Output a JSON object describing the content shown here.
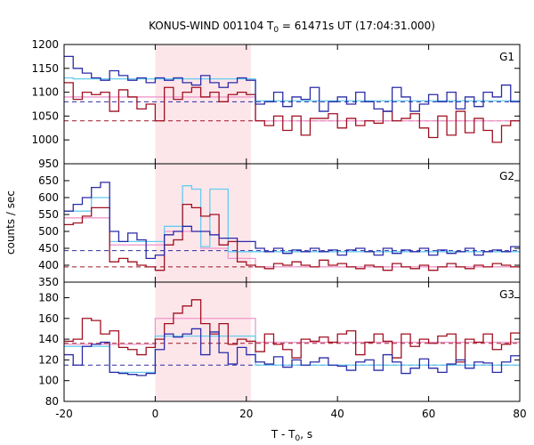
{
  "chart_data": {
    "type": "line",
    "title_main": "KONUS-WIND 001104 T",
    "title_sub": "0",
    "title_rest": " = 61471s UT (17:04:31.000)",
    "xlabel_main": "T - T",
    "xlabel_sub": "0",
    "xlabel_rest": ", s",
    "ylabel": "counts / sec",
    "xlim": [
      -20,
      80
    ],
    "x_ticks": [
      "-20",
      "0",
      "20",
      "40",
      "60",
      "80"
    ],
    "x_tick_values": [
      -20,
      0,
      20,
      40,
      60,
      80
    ],
    "highlight_interval": [
      0,
      21
    ],
    "colors": {
      "dark_blue": "#2b2ba8",
      "dark_red": "#a01020",
      "light_blue": "#66ccee",
      "pink": "#ee99cc",
      "highlight": "#fde6ea"
    },
    "bin_edges": [
      -20,
      -18,
      -16,
      -14,
      -12,
      -10,
      -8,
      -6,
      -4,
      -2,
      0,
      2,
      4,
      6,
      8,
      10,
      12,
      14,
      16,
      18,
      20,
      22,
      24,
      26,
      28,
      30,
      32,
      34,
      36,
      38,
      40,
      42,
      44,
      46,
      48,
      50,
      52,
      54,
      56,
      58,
      60,
      62,
      64,
      66,
      68,
      70,
      72,
      74,
      76,
      78,
      80
    ],
    "panels": [
      {
        "label": "G1",
        "ylim": [
          950,
          1200
        ],
        "y_ticks": [
          "1200",
          "1150",
          "1100",
          "1050",
          "1000",
          "950"
        ],
        "y_tick_values": [
          1200,
          1150,
          1100,
          1050,
          1000,
          950
        ],
        "bg_blue": 1080,
        "bg_red": 1040,
        "series": [
          {
            "color": "dark_blue",
            "values": [
              1175,
              1150,
              1140,
              1130,
              1125,
              1145,
              1135,
              1125,
              1130,
              1120,
              1130,
              1125,
              1130,
              1120,
              1115,
              1135,
              1120,
              1110,
              1120,
              1130,
              1125,
              1075,
              1080,
              1100,
              1070,
              1090,
              1085,
              1110,
              1060,
              1080,
              1090,
              1075,
              1100,
              1080,
              1065,
              1060,
              1110,
              1090,
              1060,
              1075,
              1095,
              1080,
              1100,
              1065,
              1090,
              1070,
              1100,
              1090,
              1115,
              1080
            ]
          },
          {
            "color": "dark_red",
            "values": [
              1120,
              1085,
              1100,
              1095,
              1100,
              1060,
              1105,
              1090,
              1065,
              1075,
              1040,
              1110,
              1085,
              1100,
              1110,
              1090,
              1100,
              1080,
              1095,
              1100,
              1095,
              1040,
              1030,
              1050,
              1020,
              1050,
              1010,
              1045,
              1045,
              1055,
              1025,
              1045,
              1030,
              1040,
              1035,
              1060,
              1040,
              1045,
              1055,
              1025,
              1005,
              1050,
              1010,
              1060,
              1015,
              1045,
              1020,
              995,
              1030,
              1040
            ]
          },
          {
            "color": "light_blue",
            "values": [
              1130,
              1128,
              1128,
              1128,
              1128,
              1128,
              1128,
              1128,
              1128,
              1128,
              1128,
              1128,
              1128,
              1128,
              1128,
              1128,
              1128,
              1128,
              1128,
              1128,
              1128,
              1082,
              1082,
              1082,
              1082,
              1082,
              1082,
              1082,
              1082,
              1082,
              1082,
              1082,
              1082,
              1082,
              1082,
              1082,
              1082,
              1082,
              1082,
              1082,
              1082,
              1082,
              1082,
              1082,
              1082,
              1082,
              1082,
              1082,
              1082,
              1082
            ]
          },
          {
            "color": "pink",
            "values": [
              1090,
              1090,
              1090,
              1090,
              1090,
              1090,
              1090,
              1090,
              1090,
              1090,
              1090,
              1090,
              1090,
              1090,
              1090,
              1090,
              1090,
              1090,
              1090,
              1090,
              1090,
              1040,
              1040,
              1040,
              1040,
              1040,
              1040,
              1040,
              1040,
              1040,
              1040,
              1040,
              1040,
              1040,
              1040,
              1040,
              1040,
              1040,
              1040,
              1040,
              1040,
              1040,
              1040,
              1040,
              1040,
              1040,
              1040,
              1040,
              1040,
              1040
            ]
          }
        ]
      },
      {
        "label": "G2",
        "ylim": [
          350,
          700
        ],
        "y_ticks": [
          "650",
          "600",
          "550",
          "500",
          "450",
          "400",
          "350"
        ],
        "y_tick_values": [
          650,
          600,
          550,
          500,
          450,
          400,
          350
        ],
        "bg_blue": 443,
        "bg_red": 395,
        "series": [
          {
            "color": "dark_blue",
            "values": [
              560,
              580,
              600,
              630,
              645,
              500,
              470,
              495,
              475,
              420,
              430,
              490,
              500,
              515,
              500,
              500,
              490,
              480,
              480,
              470,
              470,
              450,
              440,
              450,
              435,
              445,
              440,
              450,
              440,
              445,
              430,
              445,
              450,
              440,
              430,
              450,
              435,
              445,
              440,
              450,
              430,
              445,
              435,
              440,
              450,
              430,
              440,
              445,
              440,
              455
            ]
          },
          {
            "color": "dark_red",
            "values": [
              520,
              525,
              545,
              570,
              570,
              410,
              420,
              410,
              400,
              395,
              385,
              460,
              475,
              580,
              570,
              545,
              550,
              460,
              470,
              410,
              400,
              395,
              390,
              405,
              400,
              410,
              400,
              395,
              415,
              400,
              405,
              395,
              390,
              400,
              395,
              385,
              405,
              395,
              390,
              400,
              385,
              395,
              405,
              395,
              390,
              400,
              395,
              405,
              400,
              395
            ]
          },
          {
            "color": "light_blue",
            "values": [
              560,
              560,
              560,
              600,
              600,
              470,
              470,
              470,
              470,
              470,
              470,
              515,
              515,
              635,
              625,
              455,
              625,
              625,
              440,
              440,
              440,
              440,
              440,
              440,
              440,
              440,
              440,
              440,
              440,
              440,
              440,
              440,
              440,
              440,
              440,
              440,
              440,
              440,
              440,
              440,
              440,
              440,
              440,
              440,
              440,
              440,
              440,
              440,
              440,
              440
            ]
          },
          {
            "color": "pink",
            "values": [
              540,
              540,
              540,
              540,
              540,
              460,
              460,
              460,
              460,
              460,
              460,
              500,
              500,
              500,
              500,
              450,
              450,
              450,
              420,
              420,
              420,
              395,
              395,
              395,
              395,
              395,
              395,
              395,
              395,
              395,
              395,
              395,
              395,
              395,
              395,
              395,
              395,
              395,
              395,
              395,
              395,
              395,
              395,
              395,
              395,
              395,
              395,
              395,
              395,
              395
            ]
          }
        ]
      },
      {
        "label": "G3",
        "ylim": [
          80,
          195
        ],
        "y_ticks": [
          "180",
          "160",
          "140",
          "120",
          "100",
          "80"
        ],
        "y_tick_values": [
          180,
          160,
          140,
          120,
          100,
          80
        ],
        "bg_blue": 115,
        "bg_red": 136,
        "series": [
          {
            "color": "dark_blue",
            "values": [
              125,
              115,
              133,
              135,
              137,
              108,
              107,
              106,
              105,
              107,
              130,
              145,
              142,
              145,
              150,
              125,
              147,
              127,
              116,
              132,
              125,
              118,
              116,
              123,
              113,
              120,
              115,
              118,
              122,
              115,
              114,
              110,
              118,
              120,
              110,
              125,
              118,
              107,
              112,
              121,
              112,
              108,
              116,
              120,
              112,
              118,
              117,
              108,
              118,
              124
            ]
          },
          {
            "color": "dark_red",
            "values": [
              138,
              140,
              160,
              158,
              145,
              148,
              132,
              130,
              125,
              132,
              140,
              155,
              165,
              172,
              178,
              155,
              145,
              155,
              135,
              140,
              138,
              128,
              145,
              135,
              130,
              122,
              140,
              138,
              142,
              137,
              145,
              148,
              125,
              137,
              145,
              138,
              122,
              145,
              133,
              140,
              136,
              143,
              145,
              118,
              140,
              137,
              145,
              130,
              135,
              146
            ]
          },
          {
            "color": "light_blue",
            "values": [
              133,
              133,
              133,
              133,
              133,
              108,
              108,
              108,
              108,
              108,
              143,
              143,
              143,
              143,
              143,
              143,
              143,
              143,
              143,
              143,
              143,
              115,
              115,
              115,
              115,
              115,
              115,
              115,
              115,
              115,
              115,
              115,
              115,
              115,
              115,
              115,
              115,
              115,
              115,
              115,
              115,
              115,
              115,
              115,
              115,
              115,
              115,
              115,
              115,
              115
            ]
          },
          {
            "color": "pink",
            "values": [
              135,
              135,
              135,
              135,
              135,
              135,
              135,
              135,
              135,
              135,
              160,
              160,
              160,
              160,
              160,
              160,
              160,
              160,
              160,
              160,
              160,
              137,
              137,
              137,
              137,
              137,
              137,
              137,
              137,
              137,
              137,
              137,
              137,
              137,
              137,
              137,
              137,
              137,
              137,
              137,
              137,
              137,
              137,
              137,
              137,
              137,
              137,
              137,
              137,
              137
            ]
          }
        ]
      }
    ]
  }
}
